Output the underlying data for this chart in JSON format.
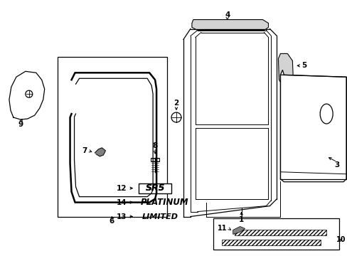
{
  "bg_color": "#ffffff",
  "line_color": "#000000",
  "figsize": [
    4.89,
    3.6
  ],
  "dpi": 100,
  "badge_12": "SR5",
  "badge_14": "PLATINUM",
  "badge_13": "LIMITED"
}
